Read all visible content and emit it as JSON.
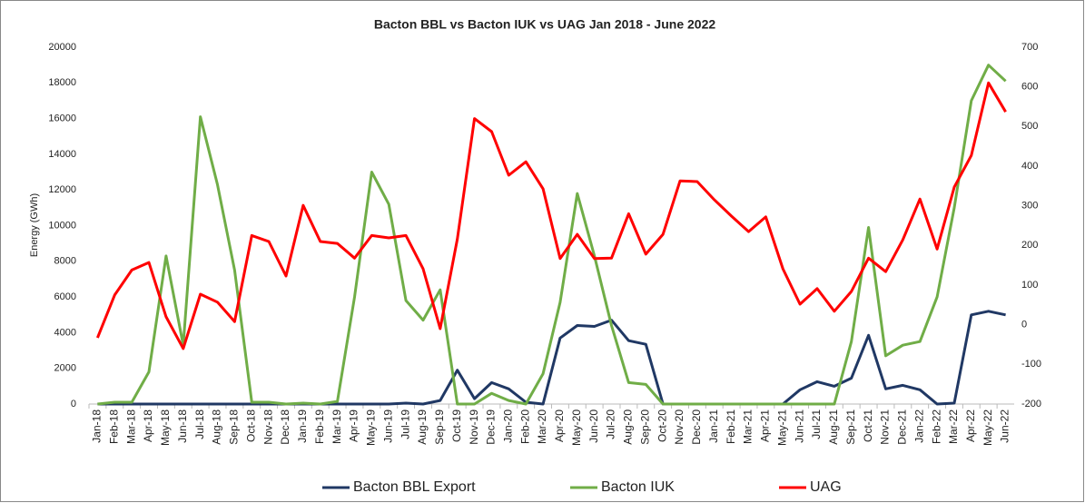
{
  "chart_data": {
    "type": "line",
    "title": "Bacton BBL vs Bacton IUK  vs UAG Jan 2018 - June 2022",
    "y_label": "Energy (GWh)",
    "categories": [
      "Jan-18",
      "Feb-18",
      "Mar-18",
      "Apr-18",
      "May-18",
      "Jun-18",
      "Jul-18",
      "Aug-18",
      "Sep-18",
      "Oct-18",
      "Nov-18",
      "Dec-18",
      "Jan-19",
      "Feb-19",
      "Mar-19",
      "Apr-19",
      "May-19",
      "Jun-19",
      "Jul-19",
      "Aug-19",
      "Sep-19",
      "Oct-19",
      "Nov-19",
      "Dec-19",
      "Jan-20",
      "Feb-20",
      "Mar-20",
      "Apr-20",
      "May-20",
      "Jun-20",
      "Jul-20",
      "Aug-20",
      "Sep-20",
      "Oct-20",
      "Nov-20",
      "Dec-20",
      "Jan-21",
      "Feb-21",
      "Mar-21",
      "Apr-21",
      "May-21",
      "Jun-21",
      "Jul-21",
      "Aug-21",
      "Sep-21",
      "Oct-21",
      "Nov-21",
      "Dec-21",
      "Jan-22",
      "Feb-22",
      "Mar-22",
      "Apr-22",
      "May-22",
      "Jun-22"
    ],
    "series": [
      {
        "name": "Bacton BBL Export",
        "color": "#203864",
        "values": [
          0,
          0,
          0,
          0,
          0,
          0,
          0,
          0,
          0,
          0,
          0,
          0,
          0,
          0,
          0,
          0,
          0,
          0,
          50,
          0,
          200,
          1900,
          300,
          1200,
          850,
          100,
          0,
          3700,
          4400,
          4350,
          4700,
          3550,
          3350,
          0,
          0,
          0,
          0,
          0,
          0,
          0,
          0,
          800,
          1250,
          1000,
          1450,
          3850,
          850,
          1050,
          800,
          0,
          50,
          5000,
          5200,
          5000
        ]
      },
      {
        "name": "Bacton IUK",
        "color": "#70ad47",
        "values": [
          0,
          100,
          100,
          1800,
          8300,
          3300,
          16100,
          12300,
          7500,
          100,
          100,
          0,
          50,
          0,
          150,
          6000,
          13000,
          11200,
          5800,
          4700,
          6400,
          0,
          0,
          600,
          200,
          0,
          1700,
          5700,
          11800,
          8300,
          4400,
          1200,
          1100,
          0,
          0,
          0,
          0,
          0,
          0,
          0,
          0,
          0,
          0,
          0,
          3500,
          9900,
          2700,
          3300,
          3500,
          6000,
          11000,
          17000,
          19000,
          18100
        ]
      },
      {
        "name": "UAG",
        "color": "#ff0000",
        "axis": "y2",
        "values": [
          -33,
          75,
          138,
          157,
          20,
          -60,
          77,
          57,
          8,
          225,
          210,
          123,
          301,
          210,
          205,
          168,
          225,
          219,
          225,
          141,
          -10,
          216,
          520,
          487,
          377,
          411,
          343,
          167,
          228,
          167,
          168,
          280,
          178,
          228,
          363,
          361,
          315,
          274,
          235,
          272,
          141,
          52,
          91,
          34,
          84,
          168,
          134,
          214,
          317,
          191,
          347,
          427,
          610,
          537
        ]
      }
    ],
    "ylim": [
      0,
      20000
    ],
    "yticks": [
      0,
      2000,
      4000,
      6000,
      8000,
      10000,
      12000,
      14000,
      16000,
      18000,
      20000
    ],
    "y2lim": [
      -200,
      700
    ],
    "y2ticks": [
      -200,
      -100,
      0,
      100,
      200,
      300,
      400,
      500,
      600,
      700
    ],
    "legend": "bottom"
  }
}
